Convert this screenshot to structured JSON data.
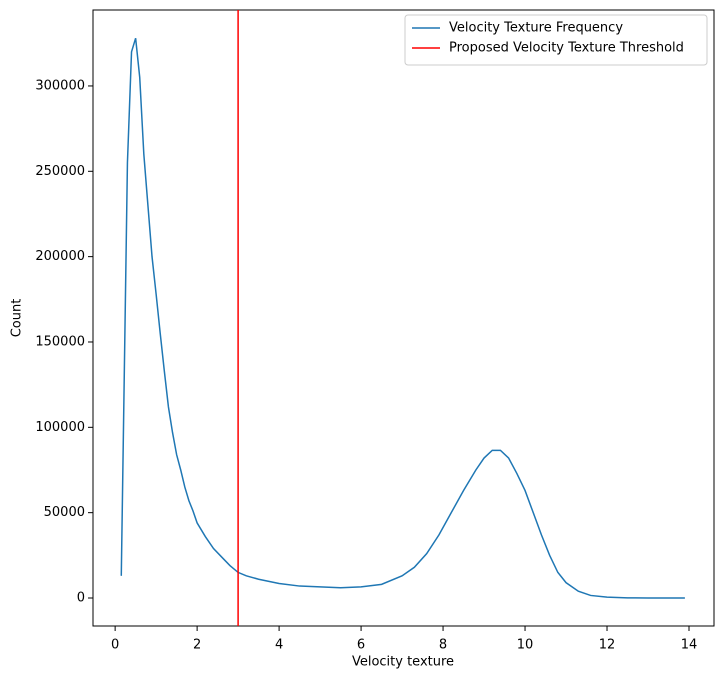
{
  "chart_data": {
    "type": "line",
    "xlabel": "Velocity texture",
    "ylabel": "Count",
    "x": [
      0.15,
      0.3,
      0.4,
      0.5,
      0.6,
      0.7,
      0.8,
      0.9,
      1.0,
      1.1,
      1.2,
      1.3,
      1.4,
      1.5,
      1.6,
      1.7,
      1.8,
      1.9,
      2.0,
      2.2,
      2.4,
      2.6,
      2.8,
      3.0,
      3.2,
      3.5,
      4.0,
      4.5,
      5.0,
      5.5,
      6.0,
      6.5,
      7.0,
      7.3,
      7.6,
      7.9,
      8.2,
      8.5,
      8.8,
      9.0,
      9.2,
      9.4,
      9.6,
      9.8,
      10.0,
      10.2,
      10.4,
      10.6,
      10.8,
      11.0,
      11.3,
      11.6,
      12.0,
      12.5,
      13.0,
      13.9
    ],
    "series": [
      {
        "name": "Velocity Texture Frequency",
        "color": "#1f77b4",
        "values": [
          13000,
          255000,
          320000,
          328000,
          305000,
          260000,
          230000,
          200000,
          178000,
          155000,
          133000,
          112000,
          97000,
          84000,
          75000,
          65000,
          57000,
          51000,
          44000,
          36000,
          29000,
          24000,
          19000,
          15000,
          13000,
          11000,
          8500,
          7000,
          6500,
          6000,
          6500,
          8000,
          13000,
          18000,
          26000,
          37000,
          50000,
          63000,
          75000,
          82000,
          86500,
          86500,
          82000,
          73000,
          63000,
          50000,
          37000,
          25000,
          15000,
          9000,
          4000,
          1500,
          500,
          100,
          0,
          0
        ]
      }
    ],
    "threshold": {
      "name": "Proposed Velocity Texture Threshold",
      "value": 3,
      "color": "#ff0000"
    },
    "xlim": [
      -0.54,
      14.61
    ],
    "ylim": [
      -16400,
      344500
    ],
    "xticks": [
      0,
      2,
      4,
      6,
      8,
      10,
      12,
      14
    ],
    "yticks": [
      0,
      50000,
      100000,
      150000,
      200000,
      250000,
      300000
    ],
    "legend": "upper right"
  }
}
